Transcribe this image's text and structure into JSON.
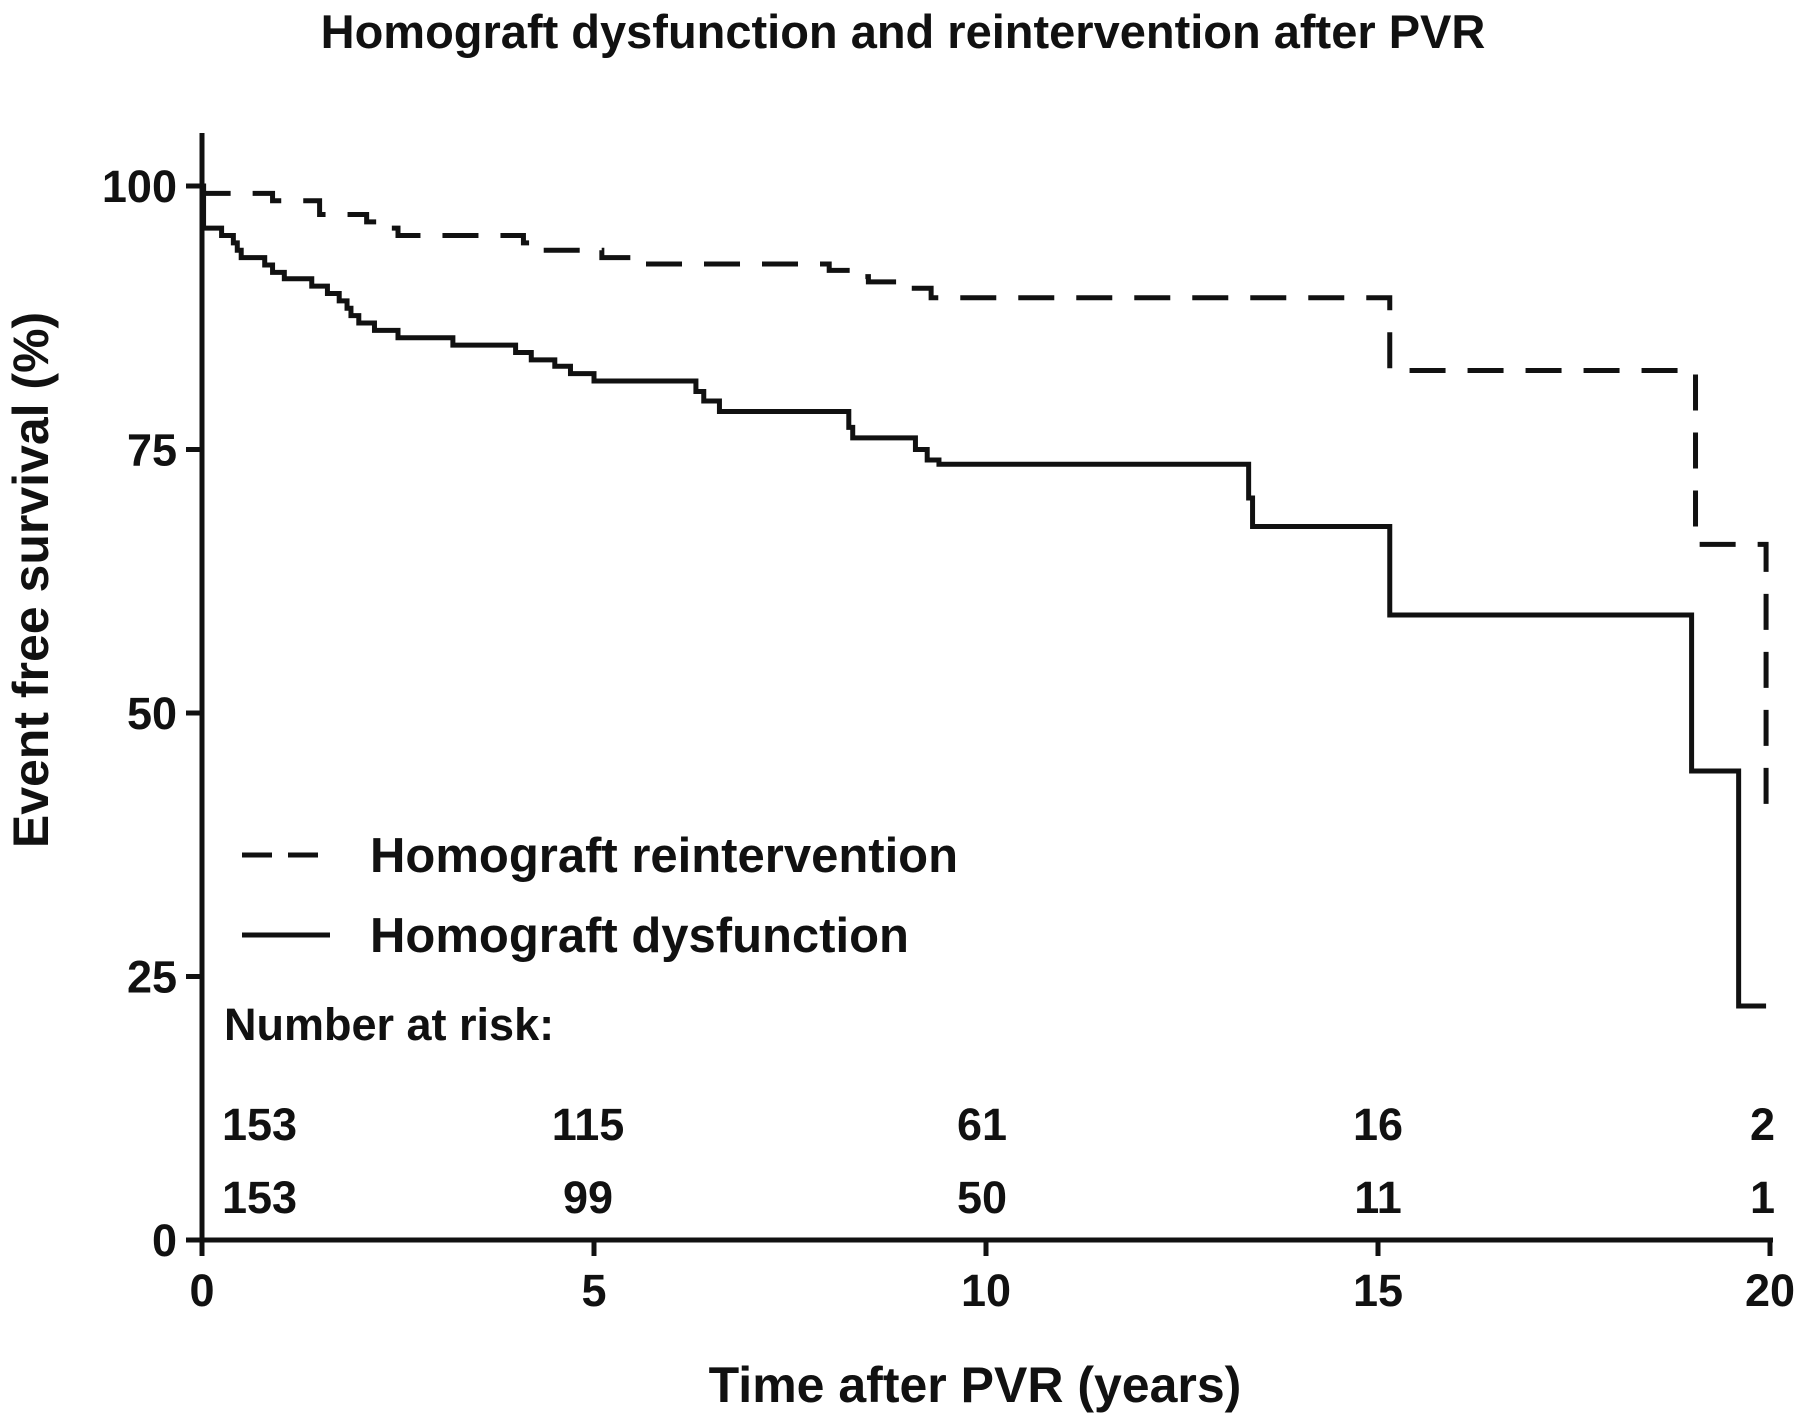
{
  "chart_data": {
    "type": "line",
    "chart_style": "kaplan-meier step curves",
    "title": "Homograft dysfunction and reintervention after PVR",
    "xlabel": "Time after PVR (years)",
    "ylabel": "Event free survival (%)",
    "xlim": [
      0,
      20
    ],
    "ylim": [
      0,
      100
    ],
    "xticks": [
      0,
      5,
      10,
      15,
      20
    ],
    "yticks": [
      0,
      25,
      50,
      75,
      100
    ],
    "grid": false,
    "legend_position": "lower-left",
    "series": [
      {
        "name": "Homograft reintervention",
        "dash": "dashed",
        "color": "#111111",
        "points": [
          [
            0,
            100
          ],
          [
            0.02,
            99.3
          ],
          [
            0.9,
            98.6
          ],
          [
            1.5,
            97.3
          ],
          [
            2.1,
            96.6
          ],
          [
            2.3,
            96.0
          ],
          [
            2.5,
            95.3
          ],
          [
            3.4,
            95.3
          ],
          [
            4.1,
            94.6
          ],
          [
            4.2,
            93.9
          ],
          [
            5.1,
            93.2
          ],
          [
            5.6,
            92.6
          ],
          [
            7.9,
            92.6
          ],
          [
            8.0,
            92.0
          ],
          [
            8.4,
            91.4
          ],
          [
            8.5,
            90.9
          ],
          [
            9.0,
            90.3
          ],
          [
            9.3,
            89.4
          ],
          [
            15.1,
            89.4
          ],
          [
            15.15,
            82.5
          ],
          [
            19.0,
            82.5
          ],
          [
            19.05,
            66.0
          ],
          [
            19.9,
            66.0
          ],
          [
            19.95,
            41.0
          ]
        ]
      },
      {
        "name": "Homograft dysfunction",
        "dash": "solid",
        "color": "#111111",
        "points": [
          [
            0,
            100
          ],
          [
            0.02,
            96.0
          ],
          [
            0.25,
            95.3
          ],
          [
            0.4,
            94.6
          ],
          [
            0.45,
            93.9
          ],
          [
            0.5,
            93.2
          ],
          [
            0.8,
            92.5
          ],
          [
            0.9,
            91.8
          ],
          [
            1.05,
            91.2
          ],
          [
            1.4,
            90.5
          ],
          [
            1.6,
            89.8
          ],
          [
            1.75,
            89.1
          ],
          [
            1.85,
            88.4
          ],
          [
            1.9,
            87.7
          ],
          [
            2.0,
            87.0
          ],
          [
            2.2,
            86.3
          ],
          [
            2.5,
            85.6
          ],
          [
            3.2,
            84.9
          ],
          [
            4.0,
            84.2
          ],
          [
            4.2,
            83.5
          ],
          [
            4.5,
            82.9
          ],
          [
            4.7,
            82.2
          ],
          [
            5.0,
            81.5
          ],
          [
            6.3,
            80.5
          ],
          [
            6.4,
            79.6
          ],
          [
            6.6,
            78.6
          ],
          [
            8.2,
            78.6
          ],
          [
            8.25,
            77.1
          ],
          [
            8.3,
            76.1
          ],
          [
            9.1,
            75.0
          ],
          [
            9.25,
            74.0
          ],
          [
            9.4,
            73.6
          ],
          [
            13.3,
            73.6
          ],
          [
            13.35,
            70.4
          ],
          [
            13.4,
            67.7
          ],
          [
            15.1,
            67.7
          ],
          [
            15.15,
            59.3
          ],
          [
            18.95,
            59.3
          ],
          [
            19.0,
            44.5
          ],
          [
            19.55,
            44.5
          ],
          [
            19.6,
            22.2
          ],
          [
            19.95,
            22.2
          ]
        ]
      }
    ],
    "number_at_risk": {
      "heading": "Number at risk:",
      "times": [
        0,
        5,
        10,
        15,
        20
      ],
      "rows": [
        [
          "153",
          "115",
          "61",
          "16",
          "2"
        ],
        [
          "153",
          "99",
          "50",
          "11",
          "1"
        ]
      ]
    }
  }
}
